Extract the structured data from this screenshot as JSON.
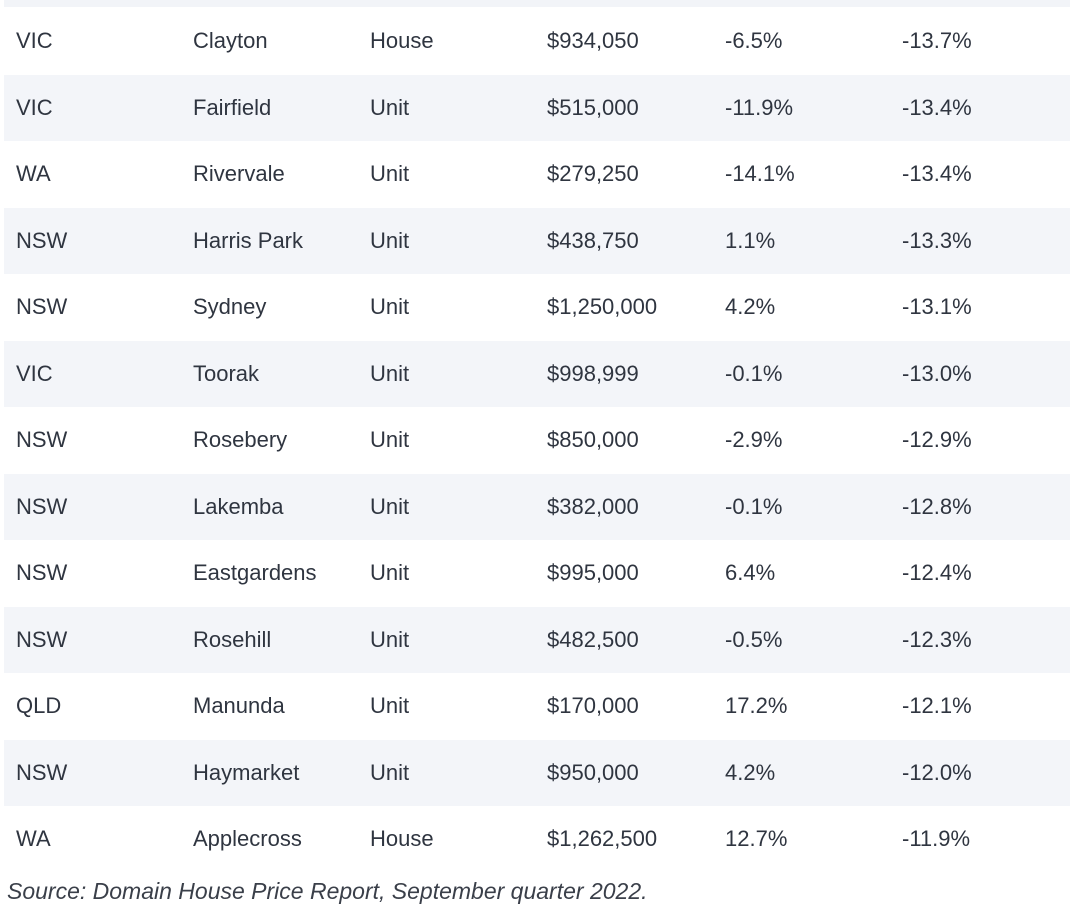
{
  "table": {
    "rows": [
      [
        "VIC",
        "Clayton",
        "House",
        "$934,050",
        "-6.5%",
        "-13.7%"
      ],
      [
        "VIC",
        "Fairfield",
        "Unit",
        "$515,000",
        "-11.9%",
        "-13.4%"
      ],
      [
        "WA",
        "Rivervale",
        "Unit",
        "$279,250",
        "-14.1%",
        "-13.4%"
      ],
      [
        "NSW",
        "Harris Park",
        "Unit",
        "$438,750",
        "1.1%",
        "-13.3%"
      ],
      [
        "NSW",
        "Sydney",
        "Unit",
        "$1,250,000",
        "4.2%",
        "-13.1%"
      ],
      [
        "VIC",
        "Toorak",
        "Unit",
        "$998,999",
        "-0.1%",
        "-13.0%"
      ],
      [
        "NSW",
        "Rosebery",
        "Unit",
        "$850,000",
        "-2.9%",
        "-12.9%"
      ],
      [
        "NSW",
        "Lakemba",
        "Unit",
        "$382,000",
        "-0.1%",
        "-12.8%"
      ],
      [
        "NSW",
        "Eastgardens",
        "Unit",
        "$995,000",
        "6.4%",
        "-12.4%"
      ],
      [
        "NSW",
        "Rosehill",
        "Unit",
        "$482,500",
        "-0.5%",
        "-12.3%"
      ],
      [
        "QLD",
        "Manunda",
        "Unit",
        "$170,000",
        "17.2%",
        "-12.1%"
      ],
      [
        "NSW",
        "Haymarket",
        "Unit",
        "$950,000",
        "4.2%",
        "-12.0%"
      ],
      [
        "WA",
        "Applecross",
        "House",
        "$1,262,500",
        "12.7%",
        "-11.9%"
      ]
    ]
  },
  "source": "Source: Domain House Price Report, September quarter 2022."
}
